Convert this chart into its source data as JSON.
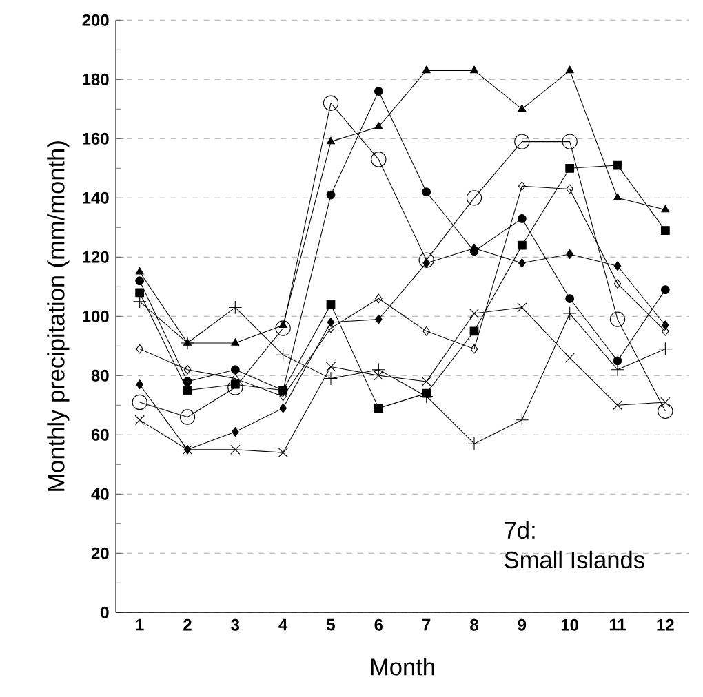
{
  "chart_data": {
    "type": "line",
    "xlabel": "Month",
    "ylabel": "Monthly precipitation (mm/month)",
    "categories": [
      "1",
      "2",
      "3",
      "4",
      "5",
      "6",
      "7",
      "8",
      "9",
      "10",
      "11",
      "12"
    ],
    "ylim": [
      0,
      200
    ],
    "yticks": [
      0,
      20,
      40,
      60,
      80,
      100,
      120,
      140,
      160,
      180,
      200
    ],
    "grid": "y",
    "annotations": [
      "7d:",
      "Small Islands"
    ],
    "series": [
      {
        "color": "#000000",
        "marker": "circle",
        "values": [
          71,
          66,
          76,
          96,
          172,
          153,
          119,
          140,
          159,
          159,
          99,
          68
        ]
      },
      {
        "color": "#000000",
        "marker": "triangle",
        "values": [
          115,
          91,
          91,
          97,
          159,
          164,
          183,
          183,
          170,
          183,
          140,
          136
        ]
      },
      {
        "color": "#000000",
        "marker": "circle filled",
        "values": [
          112,
          78,
          82,
          75,
          141,
          176,
          142,
          122,
          133,
          106,
          85,
          109
        ]
      },
      {
        "color": "#000000",
        "marker": "square",
        "values": [
          108,
          75,
          77,
          75,
          104,
          69,
          74,
          95,
          124,
          150,
          151,
          129
        ]
      },
      {
        "color": "#000000",
        "marker": "diamond",
        "values": [
          89,
          82,
          79,
          73,
          96,
          106,
          95,
          89,
          144,
          143,
          111,
          95
        ]
      },
      {
        "color": "#000000",
        "marker": "diamond filled",
        "values": [
          77,
          55,
          61,
          69,
          98,
          99,
          118,
          123,
          118,
          121,
          117,
          97
        ]
      },
      {
        "color": "#000000",
        "marker": "plus",
        "values": [
          105,
          91,
          103,
          87,
          79,
          82,
          73,
          57,
          65,
          101,
          82,
          89
        ]
      },
      {
        "color": "#000000",
        "marker": "cross",
        "values": [
          65,
          55,
          55,
          54,
          83,
          80,
          78,
          101,
          103,
          86,
          70,
          71
        ]
      }
    ]
  }
}
